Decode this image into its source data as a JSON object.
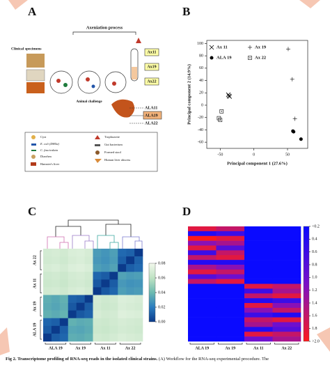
{
  "panel_labels": [
    "A",
    "B",
    "C",
    "D"
  ],
  "panel_a": {
    "process_title": "Axeniation process",
    "specimens": "Clinical specimens",
    "axenic": [
      "Ax11",
      "Ax19",
      "Ax22"
    ],
    "challenge": "Animal challenge",
    "abscess": [
      "ALA11",
      "ALA19",
      "ALA22"
    ],
    "legend": [
      "Cyst",
      "E. coli (DH5α)",
      "C. fasciculata",
      "Diarrhea",
      "Hamster's liver",
      "Trophozoite",
      "Gut bacterium",
      "Formed stool",
      "Human liver abscess"
    ]
  },
  "chart_data": [
    {
      "type": "scatter",
      "xlabel": "Principal component 1 (27.6%)",
      "ylabel": "Principal component 2 (14.9%)",
      "xlim": [
        -70,
        80
      ],
      "ylim": [
        -70,
        105
      ],
      "xticks": [
        -50,
        0,
        50
      ],
      "yticks": [
        -60,
        -40,
        -20,
        0,
        20,
        40,
        60,
        80,
        100
      ],
      "legend": "upper-left",
      "series": [
        {
          "name": "Ax 11",
          "marker": "x",
          "color": "#000000",
          "x": [
            -38,
            -36,
            -37
          ],
          "y": [
            17,
            14,
            15
          ]
        },
        {
          "name": "Ax 19",
          "marker": "plus",
          "color": "#000000",
          "x": [
            51,
            57,
            61
          ],
          "y": [
            91,
            42,
            -22
          ]
        },
        {
          "name": "ALA 19",
          "marker": "dot",
          "color": "#000000",
          "x": [
            58,
            70,
            59
          ],
          "y": [
            -42,
            -55,
            -43
          ]
        },
        {
          "name": "Ax 22",
          "marker": "square",
          "color": "#000000",
          "x": [
            -48,
            -52,
            -50
          ],
          "y": [
            -10,
            -21,
            -24
          ]
        }
      ]
    },
    {
      "type": "heatmap",
      "clim": [
        0,
        0.08
      ],
      "colorscale": [
        "#0b3a8a",
        "#2a7dc0",
        "#6cbab0",
        "#bfe3c3",
        "#f2f8ec"
      ],
      "colorbar_low_at": "bottom",
      "cbar_ticks": [
        {
          "value": 0,
          "label": "0.00"
        },
        0.02,
        0.04,
        0.06,
        0.08
      ],
      "row_groups": [
        "Ax 22",
        "Ax 11",
        "Ax 19",
        "ALA 19"
      ],
      "col_groups": [
        "ALA 19",
        "Ax 19",
        "Ax 11",
        "Ax 22"
      ],
      "matrix": [
        [
          0.068,
          0.069,
          0.067,
          0.07,
          0.071,
          0.069,
          0.03,
          0.028,
          0.031,
          0.014,
          0.012,
          0
        ],
        [
          0.067,
          0.068,
          0.066,
          0.069,
          0.07,
          0.068,
          0.029,
          0.027,
          0.03,
          0.011,
          0,
          0.012
        ],
        [
          0.069,
          0.07,
          0.068,
          0.071,
          0.072,
          0.07,
          0.031,
          0.029,
          0.032,
          0,
          0.011,
          0.014
        ],
        [
          0.066,
          0.067,
          0.065,
          0.068,
          0.069,
          0.067,
          0.013,
          0.01,
          0,
          0.032,
          0.03,
          0.031
        ],
        [
          0.065,
          0.066,
          0.064,
          0.067,
          0.068,
          0.066,
          0.009,
          0,
          0.01,
          0.029,
          0.027,
          0.028
        ],
        [
          0.067,
          0.068,
          0.066,
          0.069,
          0.07,
          0.068,
          0,
          0.009,
          0.013,
          0.031,
          0.029,
          0.03
        ],
        [
          0.036,
          0.034,
          0.037,
          0.012,
          0.01,
          0,
          0.068,
          0.066,
          0.067,
          0.071,
          0.07,
          0.069
        ],
        [
          0.035,
          0.033,
          0.036,
          0.009,
          0,
          0.01,
          0.067,
          0.065,
          0.066,
          0.07,
          0.069,
          0.068
        ],
        [
          0.037,
          0.035,
          0.038,
          0,
          0.009,
          0.012,
          0.069,
          0.067,
          0.068,
          0.072,
          0.071,
          0.07
        ],
        [
          0.013,
          0.011,
          0,
          0.037,
          0.035,
          0.036,
          0.066,
          0.065,
          0.067,
          0.069,
          0.068,
          0.067
        ],
        [
          0.01,
          0,
          0.011,
          0.034,
          0.033,
          0.035,
          0.065,
          0.064,
          0.066,
          0.068,
          0.067,
          0.066
        ],
        [
          0,
          0.01,
          0.013,
          0.036,
          0.035,
          0.037,
          0.067,
          0.066,
          0.068,
          0.07,
          0.069,
          0.068
        ]
      ]
    },
    {
      "type": "heatmap",
      "clim": [
        0.2,
        2
      ],
      "colorscale": [
        "#0a0aff",
        "#7a10c8",
        "#ff1a1a"
      ],
      "colorbar_low_at": "top",
      "cbar_ticks": [
        {
          "value": 0.2,
          "label": "<0.2"
        },
        0.4,
        0.6,
        0.8,
        {
          "value": 1,
          "label": "1.0"
        },
        1.2,
        1.4,
        1.6,
        1.8,
        {
          "value": 2,
          "label": ">2.0"
        }
      ],
      "col_groups": [
        "ALA 19",
        "Ax 19",
        "Ax 11",
        "Ax 22"
      ],
      "matrix": [
        [
          1.8,
          1.6,
          0.2,
          0.2
        ],
        [
          0.4,
          0.6,
          0.2,
          0.2
        ],
        [
          2,
          1.8,
          0.2,
          0.2
        ],
        [
          1.2,
          1.4,
          0.2,
          0.2
        ],
        [
          1.8,
          0.8,
          0.2,
          0.2
        ],
        [
          0.6,
          1.6,
          0.2,
          0.2
        ],
        [
          1.6,
          1.8,
          0.2,
          0.2
        ],
        [
          0.4,
          0.4,
          0.2,
          0.2
        ],
        [
          1.4,
          1.2,
          0.2,
          0.2
        ],
        [
          1.8,
          1.6,
          0.2,
          0.2
        ],
        [
          0.8,
          1,
          0.2,
          0.2
        ],
        [
          1.6,
          1.8,
          0.2,
          0.2
        ],
        [
          0.2,
          0.2,
          1.8,
          1.6
        ],
        [
          0.2,
          0.2,
          0.6,
          1.4
        ],
        [
          0.2,
          0.2,
          1.6,
          1.8
        ],
        [
          0.2,
          0.2,
          0.4,
          0.6
        ],
        [
          0.2,
          0.2,
          1.8,
          1.2
        ],
        [
          0.2,
          0.2,
          1.2,
          1.6
        ],
        [
          0.2,
          0.2,
          0.6,
          0.4
        ],
        [
          0.2,
          0.2,
          1.6,
          1.8
        ],
        [
          0.2,
          0.2,
          1.4,
          1
        ],
        [
          0.2,
          0.2,
          0.4,
          0.8
        ],
        [
          0.2,
          0.2,
          1.8,
          1.6
        ],
        [
          0.2,
          0.2,
          1,
          1.4
        ]
      ]
    }
  ],
  "caption": {
    "label": "Fig 2.",
    "title": "Transcriptome profiling of RNA-seq reads in the isolated clinical strains.",
    "text": "(A) Workflow for the RNA-seq experimental procedure. The"
  }
}
